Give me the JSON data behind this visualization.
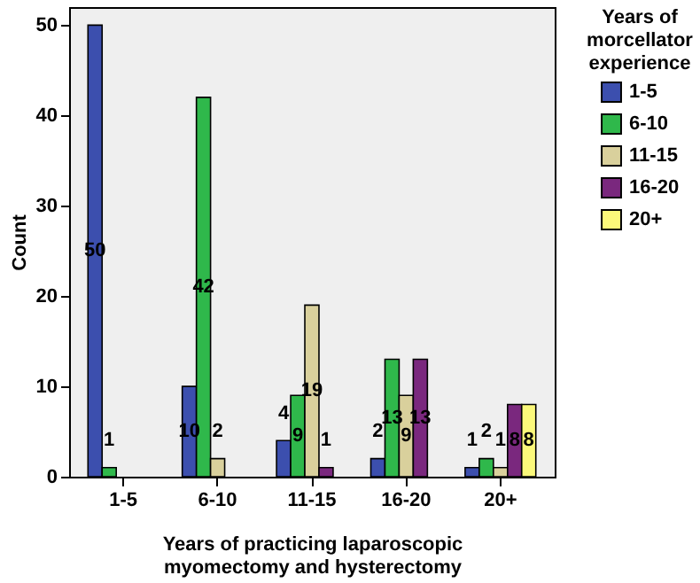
{
  "chart_data": {
    "type": "bar",
    "xlabel": "Years of practicing laparoscopic myomectomy and hysterectomy",
    "ylabel": "Count",
    "legend_title": "Years of morcellator experience",
    "categories": [
      "1-5",
      "6-10",
      "11-15",
      "16-20",
      "20+"
    ],
    "series": [
      {
        "name": "1-5",
        "color": "#3c4fae",
        "values": [
          50,
          10,
          4,
          2,
          1
        ]
      },
      {
        "name": "6-10",
        "color": "#2fb84b",
        "values": [
          1,
          42,
          9,
          13,
          2
        ]
      },
      {
        "name": "11-15",
        "color": "#d9d09c",
        "values": [
          null,
          2,
          19,
          9,
          1
        ]
      },
      {
        "name": "16-20",
        "color": "#7a287e",
        "values": [
          null,
          null,
          1,
          13,
          8
        ]
      },
      {
        "name": "20+",
        "color": "#fbf87a",
        "values": [
          null,
          null,
          null,
          null,
          8
        ]
      }
    ],
    "ylim": [
      0,
      52
    ],
    "yticks": [
      0,
      10,
      20,
      30,
      40,
      50
    ],
    "data_labels": true,
    "legend": "right",
    "grid": false
  }
}
